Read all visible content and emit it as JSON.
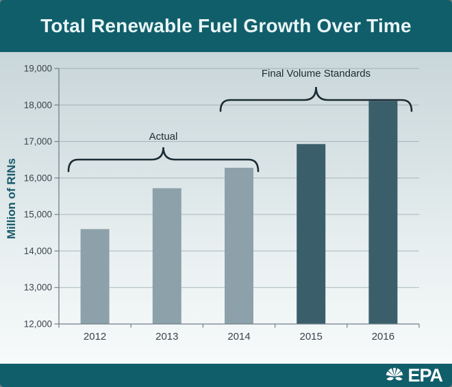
{
  "title": "Total Renewable Fuel Growth Over Time",
  "chart_data": {
    "type": "bar",
    "categories": [
      "2012",
      "2013",
      "2014",
      "2015",
      "2016"
    ],
    "values": [
      14600,
      15720,
      16280,
      16930,
      18110
    ],
    "bar_colors": [
      "#8da1aa",
      "#8da1aa",
      "#8da1aa",
      "#3a5f6b",
      "#3a5f6b"
    ],
    "series": [
      {
        "name": "Actual",
        "categories": [
          "2012",
          "2013",
          "2014"
        ],
        "color": "#8da1aa"
      },
      {
        "name": "Final Volume Standards",
        "categories": [
          "2015",
          "2016"
        ],
        "color": "#3a5f6b"
      }
    ],
    "title": "Total Renewable Fuel Growth Over Time",
    "xlabel": "",
    "ylabel": "Million of RINs",
    "ylim": [
      12000,
      19000
    ],
    "ytick_step": 1000,
    "ytick_labels": [
      "12,000",
      "13,000",
      "14,000",
      "15,000",
      "16,000",
      "17,000",
      "18,000",
      "19,000"
    ],
    "grid": true,
    "legend": "none",
    "annotations": [
      {
        "label": "Actual",
        "spans": [
          "2012",
          "2014"
        ],
        "style": "curly-brace-above-bars"
      },
      {
        "label": "Final Volume Standards",
        "spans": [
          "2014",
          "2016"
        ],
        "style": "curly-brace-above-bars"
      }
    ]
  },
  "footer": {
    "logo_text": "EPA",
    "logo_icon": "epa-flower-icon"
  },
  "colors": {
    "banner": "#115e6b",
    "title_text": "#e9f5f5",
    "bar_actual": "#8da1aa",
    "bar_standard": "#3a5f6b",
    "annotation_ink": "#1b2b33",
    "axis_line": "#6f8089",
    "gridline": "#98a7ad",
    "ylabel_text": "#175a69",
    "tick_text": "#3a444c",
    "logo": "#ffffff"
  }
}
